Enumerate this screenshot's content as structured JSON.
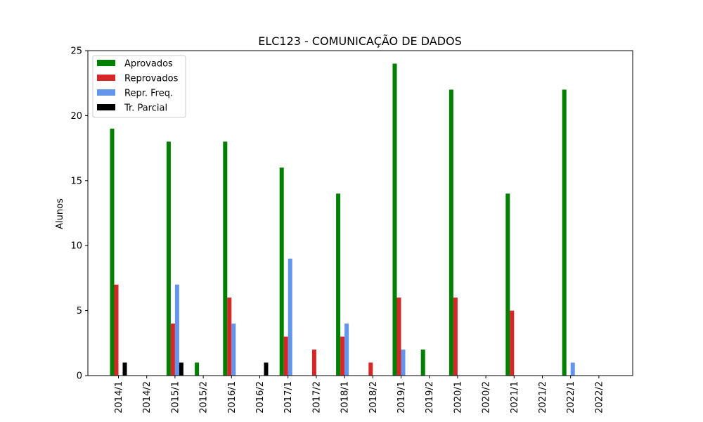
{
  "chart_data": {
    "type": "bar",
    "title": "ELC123 - COMUNICAÇÃO DE DADOS",
    "xlabel": "",
    "ylabel": "Alunos",
    "ylim": [
      0,
      25
    ],
    "yticks": [
      0,
      5,
      10,
      15,
      20,
      25
    ],
    "grid": false,
    "legend_position": "top-left",
    "categories": [
      "2014/1",
      "2014/2",
      "2015/1",
      "2015/2",
      "2016/1",
      "2016/2",
      "2017/1",
      "2017/2",
      "2018/1",
      "2018/2",
      "2019/1",
      "2019/2",
      "2020/1",
      "2020/2",
      "2021/1",
      "2021/2",
      "2022/1",
      "2022/2"
    ],
    "series": [
      {
        "name": "Aprovados",
        "color": "#008000",
        "values": [
          19,
          0,
          18,
          1,
          18,
          0,
          16,
          0,
          14,
          0,
          24,
          2,
          22,
          0,
          14,
          0,
          22,
          0
        ]
      },
      {
        "name": "Reprovados",
        "color": "#d62728",
        "values": [
          7,
          0,
          4,
          0,
          6,
          0,
          3,
          2,
          3,
          1,
          6,
          0,
          6,
          0,
          5,
          0,
          0,
          0
        ]
      },
      {
        "name": "Repr. Freq.",
        "color": "#6495ed",
        "values": [
          0,
          0,
          7,
          0,
          4,
          0,
          9,
          0,
          4,
          0,
          2,
          0,
          0,
          0,
          0,
          0,
          1,
          0
        ]
      },
      {
        "name": "Tr. Parcial",
        "color": "#000000",
        "values": [
          1,
          0,
          1,
          0,
          0,
          1,
          0,
          0,
          0,
          0,
          0,
          0,
          0,
          0,
          0,
          0,
          0,
          0
        ]
      }
    ]
  }
}
